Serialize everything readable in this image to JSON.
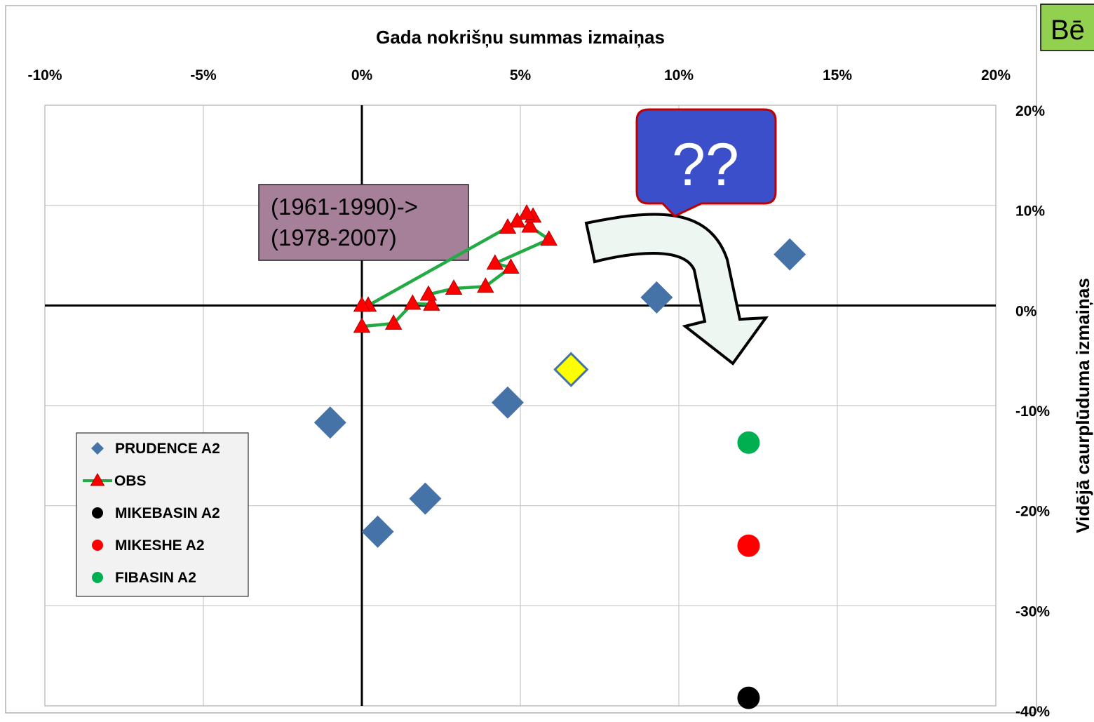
{
  "corner_label": "Bē",
  "chart_data": {
    "type": "scatter",
    "title": "",
    "xlabel": "Gada nokrišņu summas izmaiņas",
    "ylabel": "Vidējā caurplūduma izmaiņas",
    "xlim": [
      -10,
      20
    ],
    "ylim": [
      -40,
      20
    ],
    "x_ticks": [
      -10,
      -5,
      0,
      5,
      10,
      15,
      20
    ],
    "y_ticks": [
      20,
      10,
      0,
      -10,
      -20,
      -30,
      -40
    ],
    "x_tick_labels": [
      "-10%",
      "-5%",
      "0%",
      "5%",
      "10%",
      "15%",
      "20%"
    ],
    "y_tick_labels": [
      "20%",
      "10%",
      "0%",
      "-10%",
      "-20%",
      "-30%",
      "-40%"
    ],
    "grid": true,
    "legend_position": "bottom-left",
    "series": [
      {
        "name": "PRUDENCE A2",
        "marker": "diamond",
        "color": "#4572a7",
        "points": [
          [
            -1.0,
            -11.7
          ],
          [
            0.5,
            -22.6
          ],
          [
            2.0,
            -19.3
          ],
          [
            4.6,
            -9.7
          ],
          [
            9.3,
            0.8
          ],
          [
            13.5,
            5.1
          ]
        ]
      },
      {
        "name": "OBS",
        "marker": "triangle",
        "color": "#ff0000",
        "line_color": "#22aa44",
        "points": [
          [
            0.0,
            -2.1
          ],
          [
            1.0,
            -1.8
          ],
          [
            1.6,
            0.2
          ],
          [
            2.2,
            0.1
          ],
          [
            2.1,
            1.1
          ],
          [
            2.9,
            1.7
          ],
          [
            3.9,
            1.9
          ],
          [
            4.7,
            3.8
          ],
          [
            4.2,
            4.2
          ],
          [
            5.9,
            6.6
          ],
          [
            5.3,
            7.9
          ],
          [
            5.4,
            8.9
          ],
          [
            5.2,
            9.2
          ],
          [
            4.9,
            8.4
          ],
          [
            4.6,
            7.8
          ],
          [
            0.2,
            0.0
          ],
          [
            0.0,
            0.0
          ]
        ]
      },
      {
        "name": "MIKEBASIN A2",
        "marker": "circle",
        "color": "#000000",
        "points": [
          [
            12.2,
            -39.2
          ]
        ]
      },
      {
        "name": "MIKESHE A2",
        "marker": "circle",
        "color": "#ff0000",
        "points": [
          [
            12.2,
            -24.0
          ]
        ]
      },
      {
        "name": "FIBASIN A2",
        "marker": "circle",
        "color": "#00b050",
        "points": [
          [
            12.2,
            -13.7
          ]
        ]
      },
      {
        "name": "",
        "marker": "diamond",
        "color": "#ffff00",
        "edge_color": "#4572a7",
        "points": [
          [
            6.6,
            -6.4
          ]
        ]
      }
    ],
    "annotations": {
      "period_box_line1": "(1961-1990)->",
      "period_box_line2": "(1978-2007)",
      "question_callout": "??"
    }
  }
}
